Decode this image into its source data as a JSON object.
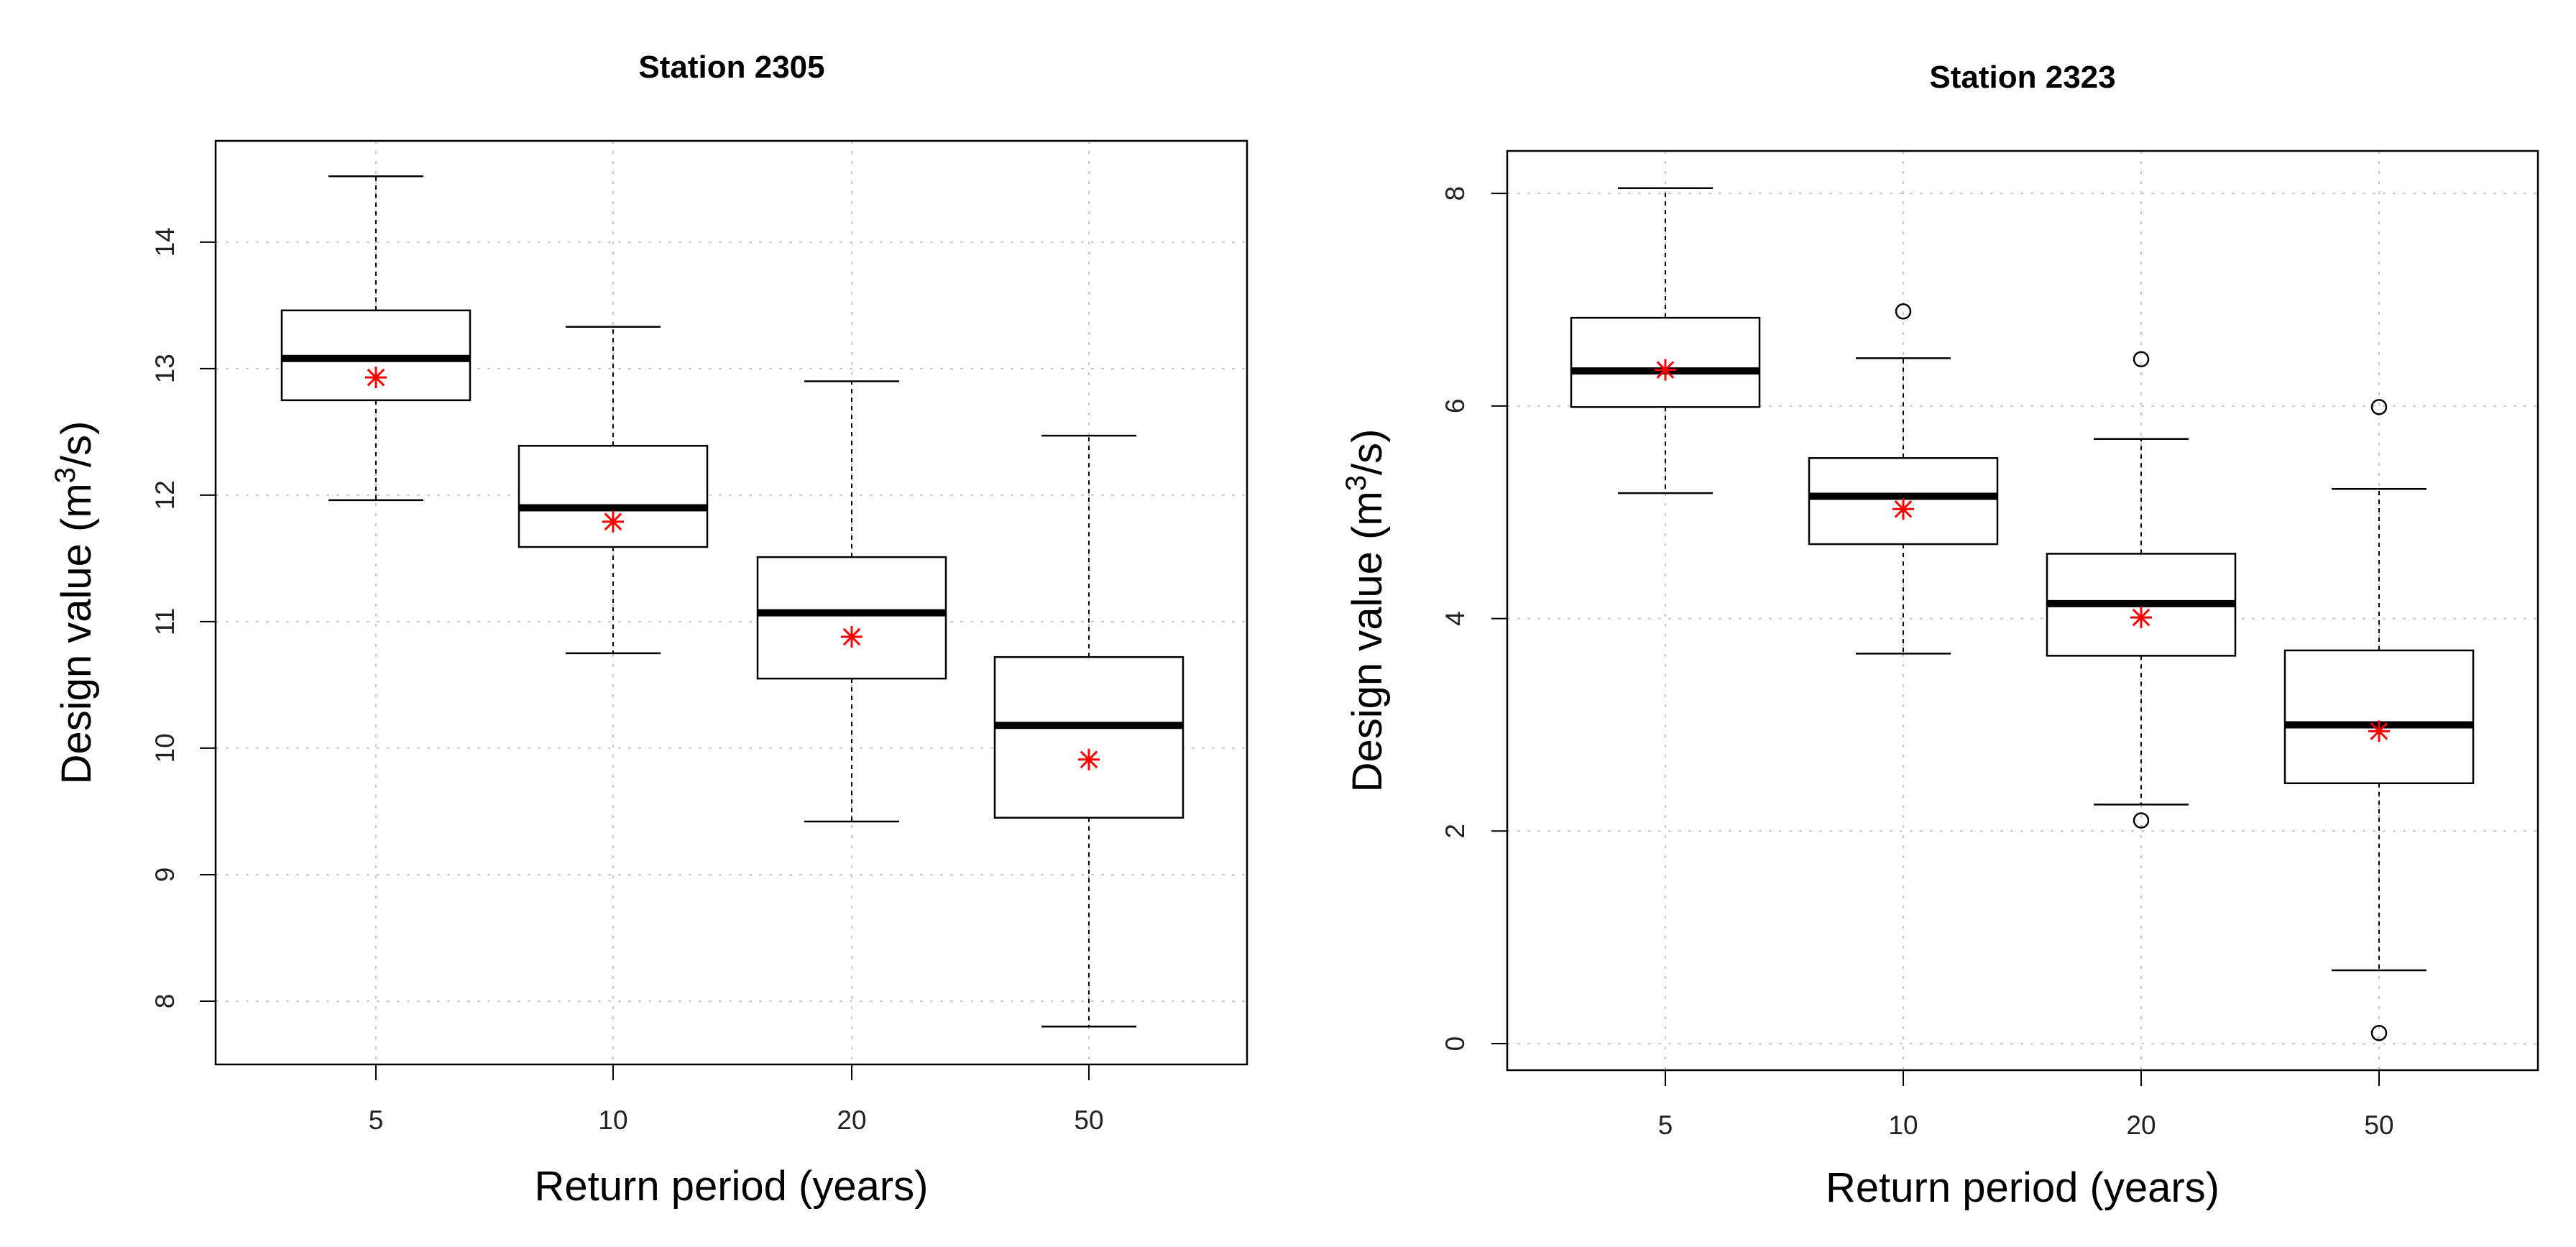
{
  "chart_data": [
    {
      "type": "boxplot",
      "title": "Station 2305",
      "xlabel": "Return period (years)",
      "ylabel": "Design value (m³/s)",
      "ylabel_main": "Design value (m",
      "ylabel_sup": "3",
      "ylabel_tail": "/s)",
      "categories": [
        "5",
        "10",
        "20",
        "50"
      ],
      "ylim": [
        7.5,
        14.8
      ],
      "yticks": [
        8,
        9,
        10,
        11,
        12,
        13,
        14
      ],
      "boxes": [
        {
          "whisker_low": 11.96,
          "q1": 12.75,
          "median": 13.08,
          "q3": 13.46,
          "whisker_high": 14.52,
          "mean": 12.93,
          "outliers": []
        },
        {
          "whisker_low": 10.75,
          "q1": 11.59,
          "median": 11.9,
          "q3": 12.39,
          "whisker_high": 13.33,
          "mean": 11.79,
          "outliers": []
        },
        {
          "whisker_low": 9.42,
          "q1": 10.55,
          "median": 11.07,
          "q3": 11.51,
          "whisker_high": 12.9,
          "mean": 10.88,
          "outliers": []
        },
        {
          "whisker_low": 7.8,
          "q1": 9.45,
          "median": 10.18,
          "q3": 10.72,
          "whisker_high": 12.47,
          "mean": 9.91,
          "outliers": []
        }
      ]
    },
    {
      "type": "boxplot",
      "title": "Station 2323",
      "xlabel": "Return period (years)",
      "ylabel": "Design value (m³/s)",
      "ylabel_main": "Design value (m",
      "ylabel_sup": "3",
      "ylabel_tail": "/s)",
      "categories": [
        "5",
        "10",
        "20",
        "50"
      ],
      "ylim": [
        -0.25,
        8.4
      ],
      "yticks": [
        0,
        2,
        4,
        6,
        8
      ],
      "boxes": [
        {
          "whisker_low": 5.18,
          "q1": 5.99,
          "median": 6.33,
          "q3": 6.83,
          "whisker_high": 8.05,
          "mean": 6.34,
          "outliers": []
        },
        {
          "whisker_low": 3.67,
          "q1": 4.7,
          "median": 5.15,
          "q3": 5.51,
          "whisker_high": 6.45,
          "mean": 5.03,
          "outliers": [
            6.89
          ]
        },
        {
          "whisker_low": 2.25,
          "q1": 3.65,
          "median": 4.14,
          "q3": 4.61,
          "whisker_high": 5.69,
          "mean": 4.01,
          "outliers": [
            6.44,
            2.1
          ]
        },
        {
          "whisker_low": 0.69,
          "q1": 2.45,
          "median": 3.0,
          "q3": 3.7,
          "whisker_high": 5.22,
          "mean": 2.94,
          "outliers": [
            5.99,
            0.1
          ]
        }
      ]
    }
  ]
}
